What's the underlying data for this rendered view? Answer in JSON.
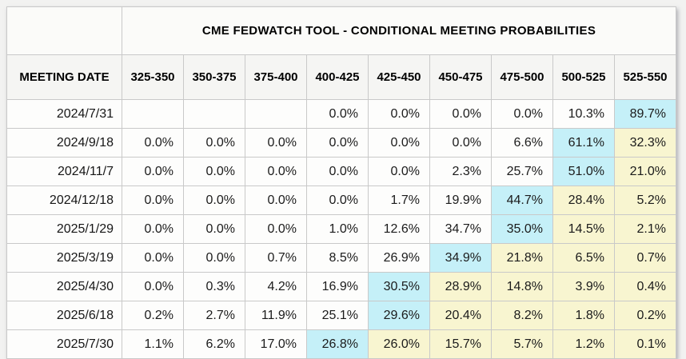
{
  "table": {
    "title": "CME FEDWATCH TOOL - CONDITIONAL MEETING PROBABILITIES",
    "columns": [
      "MEETING DATE",
      "325-350",
      "350-375",
      "375-400",
      "400-425",
      "425-450",
      "450-475",
      "475-500",
      "500-525",
      "525-550"
    ],
    "rows": [
      {
        "date": "2024/7/31",
        "values": [
          "",
          "",
          "",
          "0.0%",
          "0.0%",
          "0.0%",
          "0.0%",
          "10.3%",
          "89.7%"
        ],
        "styles": [
          "plain",
          "plain",
          "plain",
          "plain",
          "plain",
          "plain",
          "plain",
          "plain",
          "cyan"
        ]
      },
      {
        "date": "2024/9/18",
        "values": [
          "0.0%",
          "0.0%",
          "0.0%",
          "0.0%",
          "0.0%",
          "0.0%",
          "6.6%",
          "61.1%",
          "32.3%"
        ],
        "styles": [
          "plain",
          "plain",
          "plain",
          "plain",
          "plain",
          "plain",
          "plain",
          "cyan",
          "yellow"
        ]
      },
      {
        "date": "2024/11/7",
        "values": [
          "0.0%",
          "0.0%",
          "0.0%",
          "0.0%",
          "0.0%",
          "2.3%",
          "25.7%",
          "51.0%",
          "21.0%"
        ],
        "styles": [
          "plain",
          "plain",
          "plain",
          "plain",
          "plain",
          "plain",
          "plain",
          "cyan",
          "yellow"
        ]
      },
      {
        "date": "2024/12/18",
        "values": [
          "0.0%",
          "0.0%",
          "0.0%",
          "0.0%",
          "1.7%",
          "19.9%",
          "44.7%",
          "28.4%",
          "5.2%"
        ],
        "styles": [
          "plain",
          "plain",
          "plain",
          "plain",
          "plain",
          "plain",
          "cyan",
          "yellow",
          "yellow"
        ]
      },
      {
        "date": "2025/1/29",
        "values": [
          "0.0%",
          "0.0%",
          "0.0%",
          "1.0%",
          "12.6%",
          "34.7%",
          "35.0%",
          "14.5%",
          "2.1%"
        ],
        "styles": [
          "plain",
          "plain",
          "plain",
          "plain",
          "plain",
          "plain",
          "cyan",
          "yellow",
          "yellow"
        ]
      },
      {
        "date": "2025/3/19",
        "values": [
          "0.0%",
          "0.0%",
          "0.7%",
          "8.5%",
          "26.9%",
          "34.9%",
          "21.8%",
          "6.5%",
          "0.7%"
        ],
        "styles": [
          "plain",
          "plain",
          "plain",
          "plain",
          "plain",
          "cyan",
          "yellow",
          "yellow",
          "yellow"
        ]
      },
      {
        "date": "2025/4/30",
        "values": [
          "0.0%",
          "0.3%",
          "4.2%",
          "16.9%",
          "30.5%",
          "28.9%",
          "14.8%",
          "3.9%",
          "0.4%"
        ],
        "styles": [
          "plain",
          "plain",
          "plain",
          "plain",
          "cyan",
          "yellow",
          "yellow",
          "yellow",
          "yellow"
        ]
      },
      {
        "date": "2025/6/18",
        "values": [
          "0.2%",
          "2.7%",
          "11.9%",
          "25.1%",
          "29.6%",
          "20.4%",
          "8.2%",
          "1.8%",
          "0.2%"
        ],
        "styles": [
          "plain",
          "plain",
          "plain",
          "plain",
          "cyan",
          "yellow",
          "yellow",
          "yellow",
          "yellow"
        ]
      },
      {
        "date": "2025/7/30",
        "values": [
          "1.1%",
          "6.2%",
          "17.0%",
          "26.8%",
          "26.0%",
          "15.7%",
          "5.7%",
          "1.2%",
          "0.1%"
        ],
        "styles": [
          "plain",
          "plain",
          "plain",
          "cyan",
          "yellow",
          "yellow",
          "yellow",
          "yellow",
          "yellow"
        ]
      }
    ],
    "colors": {
      "max_probability_highlight": "#c5f0f8",
      "above_max_highlight": "#f8f5d0"
    }
  }
}
